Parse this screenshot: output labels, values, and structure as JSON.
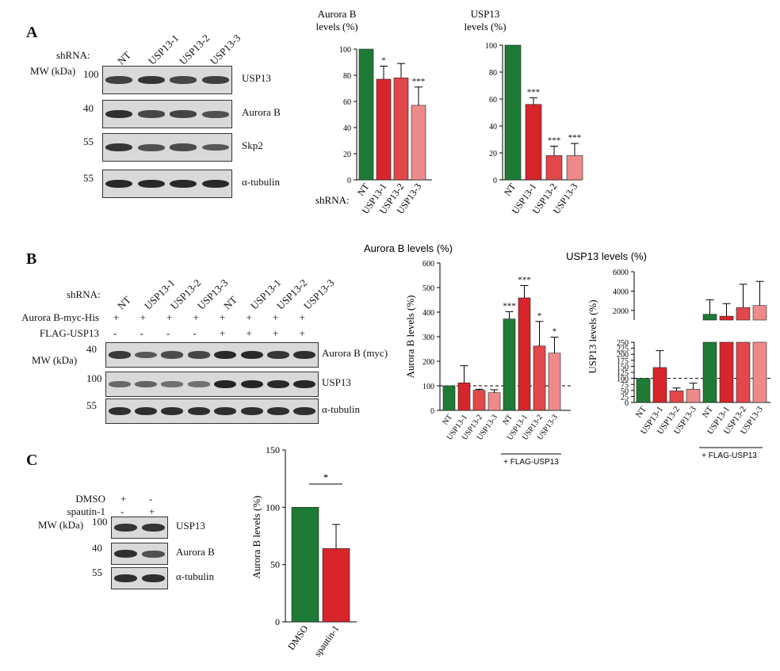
{
  "panel_a": {
    "letter": "A",
    "shrna_label": "shRNA:",
    "mw_label": "MW (kDa)",
    "lanes": [
      "NT",
      "USP13-1",
      "USP13-2",
      "USP13-3"
    ],
    "blots": [
      {
        "mw": "100",
        "label": "USP13",
        "intensity": [
          0.75,
          0.85,
          0.7,
          0.75
        ]
      },
      {
        "mw": "40",
        "label": "Aurora B",
        "intensity": [
          0.9,
          0.7,
          0.72,
          0.6
        ]
      },
      {
        "mw": "55",
        "label": "Skp2",
        "intensity": [
          0.85,
          0.6,
          0.65,
          0.55
        ]
      },
      {
        "mw": "55",
        "label": "α-tubulin",
        "intensity": [
          0.95,
          0.95,
          0.95,
          0.95
        ]
      }
    ]
  },
  "panel_b": {
    "letter": "B",
    "shrna_label": "shRNA:",
    "mw_label": "MW (kDa)",
    "lanes": [
      "NT",
      "USP13-1",
      "USP13-2",
      "USP13-3",
      "NT",
      "USP13-1",
      "USP13-2",
      "USP13-3"
    ],
    "rows": [
      {
        "label": "Aurora B-myc-His",
        "signs": [
          "+",
          "+",
          "+",
          "+",
          "+",
          "+",
          "+",
          "+"
        ]
      },
      {
        "label": "FLAG-USP13",
        "signs": [
          "-",
          "-",
          "-",
          "-",
          "+",
          "+",
          "+",
          "+"
        ]
      }
    ],
    "blots": [
      {
        "mw": "40",
        "label": "Aurora B (myc)",
        "intensity": [
          0.8,
          0.55,
          0.65,
          0.7,
          0.95,
          0.95,
          0.85,
          0.9
        ]
      },
      {
        "mw": "100",
        "label": "USP13",
        "intensity": [
          0.4,
          0.45,
          0.35,
          0.35,
          0.98,
          0.98,
          0.95,
          0.95
        ]
      },
      {
        "mw": "55",
        "label": "α-tubulin",
        "intensity": [
          0.9,
          0.9,
          0.9,
          0.9,
          0.9,
          0.9,
          0.9,
          0.9
        ]
      }
    ]
  },
  "panel_c": {
    "letter": "C",
    "mw_label": "MW (kDa)",
    "rows": [
      {
        "label": "DMSO",
        "signs": [
          "+",
          "-"
        ]
      },
      {
        "label": "spautin-1",
        "signs": [
          "-",
          "+"
        ]
      }
    ],
    "blots": [
      {
        "mw": "100",
        "label": "USP13",
        "intensity": [
          0.85,
          0.85
        ]
      },
      {
        "mw": "40",
        "label": "Aurora B",
        "intensity": [
          0.9,
          0.6
        ]
      },
      {
        "mw": "55",
        "label": "α-tubulin",
        "intensity": [
          0.9,
          0.9
        ]
      }
    ]
  },
  "colors": {
    "green": "#1e7b35",
    "red": "#d7252b",
    "red_mid": "#e2474a",
    "pink": "#ee8a8a"
  },
  "chart_data": [
    {
      "id": "A1",
      "type": "bar",
      "title": "Aurora B\nlevels (%)",
      "xlabel": "shRNA:",
      "categories": [
        "NT",
        "USP13-1",
        "USP13-2",
        "USP13-3"
      ],
      "values": [
        100,
        77,
        78,
        57
      ],
      "errors": [
        0,
        10,
        11,
        14
      ],
      "significance": [
        "",
        "*",
        "",
        "***"
      ],
      "ylim": [
        0,
        100
      ],
      "yticks": [
        0,
        20,
        40,
        60,
        80,
        100
      ]
    },
    {
      "id": "A2",
      "type": "bar",
      "title": "USP13\nlevels (%)",
      "categories": [
        "NT",
        "USP13-1",
        "USP13-2",
        "USP13-3"
      ],
      "values": [
        100,
        56,
        18,
        18
      ],
      "errors": [
        0,
        5,
        7,
        9
      ],
      "significance": [
        "",
        "***",
        "***",
        "***"
      ],
      "ylim": [
        0,
        100
      ],
      "yticks": [
        0,
        20,
        40,
        60,
        80,
        100
      ]
    },
    {
      "id": "B1",
      "type": "bar",
      "title": "Aurora B levels (%)",
      "ylabel": "Aurora B levels (%)",
      "categories": [
        "NT",
        "USP13-1",
        "USP13-2",
        "USP13-3",
        "NT",
        "USP13-1",
        "USP13-2",
        "USP13-3"
      ],
      "values": [
        100,
        112,
        82,
        72,
        372,
        458,
        262,
        233
      ],
      "errors": [
        0,
        70,
        4,
        12,
        30,
        50,
        100,
        65
      ],
      "significance": [
        "",
        "",
        "",
        "",
        "***",
        "***",
        "*",
        "*"
      ],
      "ylim": [
        0,
        600
      ],
      "yticks": [
        0,
        100,
        200,
        300,
        400,
        500,
        600
      ],
      "reference_line": 100,
      "group_label": "+ FLAG-USP13"
    },
    {
      "id": "B2",
      "type": "bar",
      "title": "USP13 levels (%)",
      "ylabel": "USP13 levels (%)",
      "categories": [
        "NT",
        "USP13-1",
        "USP13-2",
        "USP13-3",
        "NT",
        "USP13-1",
        "USP13-2",
        "USP13-3"
      ],
      "values": [
        100,
        145,
        48,
        55,
        1600,
        1400,
        2300,
        2500
      ],
      "errors": [
        0,
        70,
        12,
        25,
        1500,
        1300,
        2400,
        2500
      ],
      "ylim": [
        0,
        6000
      ],
      "yticks_lower": [
        0,
        25,
        50,
        75,
        100,
        125,
        150,
        175,
        200,
        225,
        250
      ],
      "yticks_upper": [
        2000,
        4000,
        6000
      ],
      "axis_break": [
        250,
        1000
      ],
      "reference_line": 100,
      "group_label": "+ FLAG-USP13"
    },
    {
      "id": "C1",
      "type": "bar",
      "ylabel": "Aurora B levels (%)",
      "categories": [
        "DMSO",
        "spautin-1"
      ],
      "values": [
        100,
        64
      ],
      "errors": [
        0,
        21
      ],
      "significance_bracket": "*",
      "ylim": [
        0,
        150
      ],
      "yticks": [
        0,
        50,
        100,
        150
      ]
    }
  ]
}
